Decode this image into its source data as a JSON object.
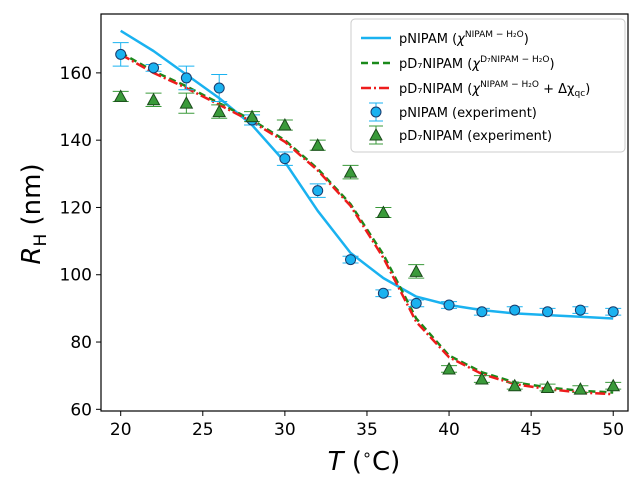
{
  "chart_data": {
    "type": "line",
    "xlabel": {
      "main": "T",
      "rest": " (",
      "degree": "∘",
      "unit": "C)"
    },
    "ylabel": {
      "main": "R",
      "sub": "H",
      "rest": " (nm)"
    },
    "xlim": [
      18.8,
      50.9
    ],
    "ylim": [
      59.5,
      177.5
    ],
    "xticks": [
      20,
      25,
      30,
      35,
      40,
      45,
      50
    ],
    "yticks": [
      60,
      80,
      100,
      120,
      140,
      160
    ],
    "legend_position": "upper-right",
    "grid": false,
    "series": [
      {
        "name": "pNIPAM",
        "superscript": "NIPAM − H₂O",
        "kind": "line",
        "style": "solid",
        "color": "#1ab2f0",
        "x": [
          20,
          22,
          24,
          26,
          28,
          30,
          32,
          34,
          36,
          38,
          40,
          42,
          44,
          46,
          48,
          50
        ],
        "y": [
          172.5,
          166.5,
          159.5,
          152.5,
          144.5,
          133.5,
          119,
          106.5,
          99,
          93.5,
          91,
          89.5,
          88.5,
          88,
          87.5,
          87
        ]
      },
      {
        "name": "pD₇NIPAM",
        "superscript": "D₇NIPAM − H₂O",
        "kind": "line",
        "style": "dashed",
        "color": "#1a8a1a",
        "x": [
          20,
          22,
          24,
          26,
          28,
          30,
          32,
          34,
          36,
          38,
          40,
          42,
          44,
          46,
          48,
          50
        ],
        "y": [
          166,
          160.5,
          156,
          151,
          146,
          140,
          131.5,
          121,
          106,
          87,
          76,
          71,
          68,
          66.5,
          65.5,
          65
        ]
      },
      {
        "name": "pD₇NIPAM",
        "superscript": "NIPAM − H₂O",
        "extra_symbol": "Δχ",
        "extra_sub": "qc",
        "kind": "line",
        "style": "dashdot",
        "color": "#ee1c1c",
        "x": [
          20,
          22,
          24,
          26,
          28,
          30,
          32,
          34,
          36,
          38,
          40,
          42,
          44,
          46,
          48,
          50
        ],
        "y": [
          165.5,
          160,
          155.5,
          150.5,
          145.5,
          139.5,
          131,
          120.5,
          105,
          86,
          75.5,
          70.5,
          67.5,
          66,
          65,
          64.5
        ]
      },
      {
        "name": "pNIPAM (experiment)",
        "kind": "scatter",
        "marker": "circle",
        "color": "#1ab2f0",
        "x": [
          20,
          22,
          24,
          26,
          28,
          30,
          32,
          34,
          36,
          38,
          40,
          42,
          44,
          46,
          48,
          50
        ],
        "y": [
          165.5,
          161.5,
          158.5,
          155.5,
          146,
          134.5,
          125,
          104.5,
          94.5,
          91.5,
          91,
          89,
          89.5,
          89,
          89.5,
          89
        ],
        "err": [
          3.5,
          1,
          3.5,
          4,
          1.5,
          2,
          2,
          1,
          1,
          1,
          1,
          1,
          1,
          1,
          1,
          1
        ]
      },
      {
        "name": "pD₇NIPAM (experiment)",
        "kind": "scatter",
        "marker": "triangle",
        "color": "#3a9a3a",
        "x": [
          20,
          22,
          24,
          26,
          28,
          30,
          32,
          34,
          36,
          38,
          40,
          42,
          44,
          46,
          48,
          50
        ],
        "y": [
          153,
          152,
          151,
          148.5,
          147,
          144.5,
          138.5,
          130.5,
          118.5,
          101,
          72,
          69,
          67,
          66.5,
          66,
          67
        ],
        "err": [
          1.5,
          2,
          3,
          2,
          1.5,
          1.5,
          1.5,
          2,
          1.5,
          2,
          1,
          1,
          1,
          1,
          1,
          1
        ]
      }
    ]
  }
}
